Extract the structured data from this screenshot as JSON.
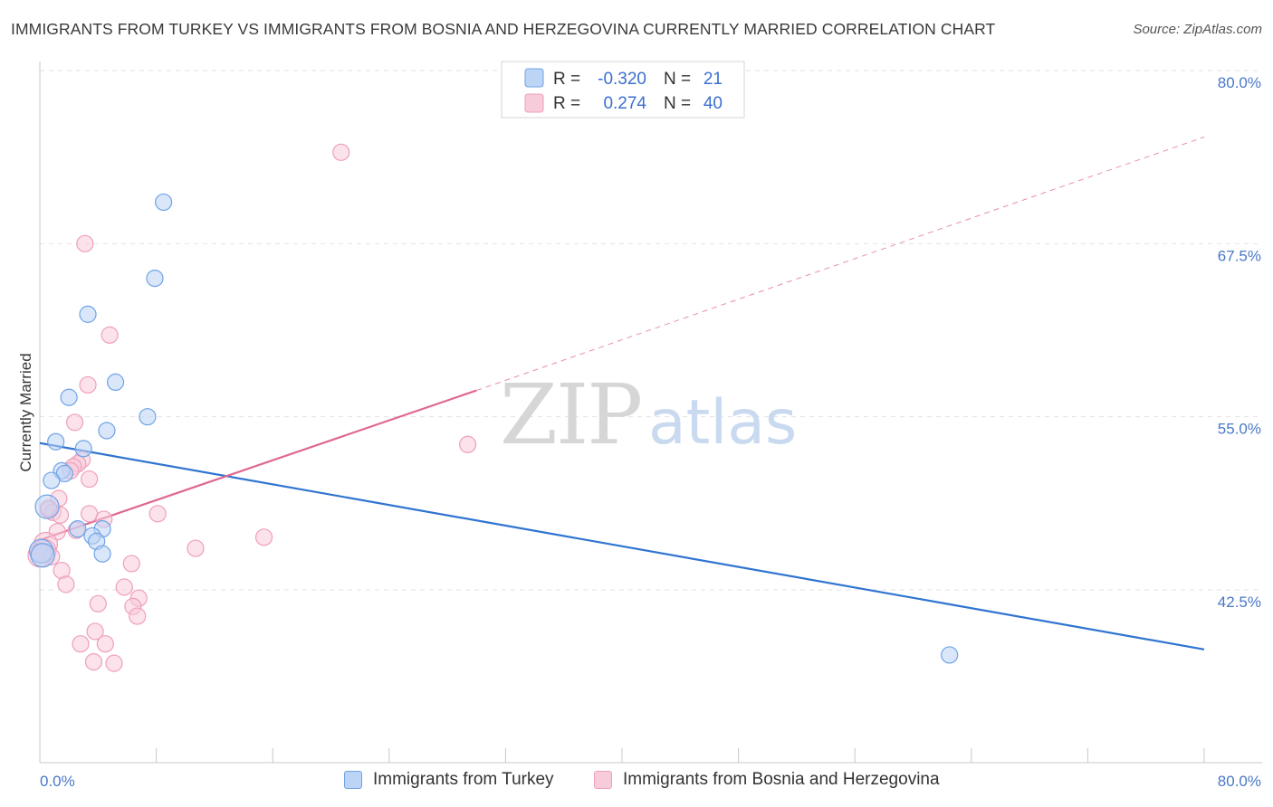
{
  "chart_data": {
    "type": "scatter",
    "title": "IMMIGRANTS FROM TURKEY VS IMMIGRANTS FROM BOSNIA AND HERZEGOVINA CURRENTLY MARRIED CORRELATION CHART",
    "source": "Source: ZipAtlas.com",
    "ylabel": "Currently Married",
    "xlabel": "",
    "xlim": [
      0,
      80
    ],
    "ylim": [
      32,
      81.5
    ],
    "x_tick_labels": [
      "0.0%",
      "80.0%"
    ],
    "y_ticks": [
      {
        "value": 80.0,
        "label": "80.0%"
      },
      {
        "value": 67.5,
        "label": "67.5%"
      },
      {
        "value": 55.0,
        "label": "55.0%"
      },
      {
        "value": 42.5,
        "label": "42.5%"
      }
    ],
    "watermark": {
      "zip": "ZIP",
      "atlas": "atlas"
    },
    "legend": {
      "rows": [
        {
          "r_label": "R =",
          "r_value": "-0.320",
          "n_label": "N =",
          "n_value": "21"
        },
        {
          "r_label": "R =",
          "r_value": "0.274",
          "n_label": "N =",
          "n_value": "40"
        }
      ]
    },
    "series": [
      {
        "name": "Immigrants from Turkey",
        "color": "#6fa3e6",
        "fill": "#bcd4f5",
        "line_color": "#2f74d0",
        "trend": {
          "x0": 0,
          "y0": 53.1,
          "x1": 80,
          "y1": 38.2,
          "dashed_to": null
        },
        "points": [
          {
            "x": 8.5,
            "y": 70.5
          },
          {
            "x": 7.9,
            "y": 65.0
          },
          {
            "x": 3.3,
            "y": 62.4
          },
          {
            "x": 5.2,
            "y": 57.5
          },
          {
            "x": 2.0,
            "y": 56.4
          },
          {
            "x": 7.4,
            "y": 55.0
          },
          {
            "x": 4.6,
            "y": 54.0
          },
          {
            "x": 1.1,
            "y": 53.2
          },
          {
            "x": 3.0,
            "y": 52.7
          },
          {
            "x": 1.5,
            "y": 51.1
          },
          {
            "x": 1.7,
            "y": 50.9
          },
          {
            "x": 0.8,
            "y": 50.4
          },
          {
            "x": 0.5,
            "y": 48.5
          },
          {
            "x": 4.3,
            "y": 46.9
          },
          {
            "x": 2.6,
            "y": 46.9
          },
          {
            "x": 3.6,
            "y": 46.4
          },
          {
            "x": 3.9,
            "y": 46.0
          },
          {
            "x": 4.3,
            "y": 45.1
          },
          {
            "x": 0.1,
            "y": 45.3
          },
          {
            "x": 0.2,
            "y": 45.0
          },
          {
            "x": 62.5,
            "y": 37.8
          }
        ]
      },
      {
        "name": "Immigrants from Bosnia and Herzegovina",
        "color": "#ef9fbb",
        "fill": "#f8cbdb",
        "line_color": "#e0688f",
        "trend": {
          "x0": 0,
          "y0": 46.1,
          "x1": 30.0,
          "y1": 56.9,
          "dashed_to": {
            "x": 80,
            "y": 75.2
          }
        },
        "points": [
          {
            "x": 20.7,
            "y": 74.1
          },
          {
            "x": 3.1,
            "y": 67.5
          },
          {
            "x": 4.8,
            "y": 60.9
          },
          {
            "x": 3.3,
            "y": 57.3
          },
          {
            "x": 2.4,
            "y": 54.6
          },
          {
            "x": 29.4,
            "y": 53.0
          },
          {
            "x": 2.9,
            "y": 51.9
          },
          {
            "x": 2.6,
            "y": 51.6
          },
          {
            "x": 2.3,
            "y": 51.4
          },
          {
            "x": 2.1,
            "y": 51.1
          },
          {
            "x": 3.4,
            "y": 50.5
          },
          {
            "x": 1.3,
            "y": 49.1
          },
          {
            "x": 0.6,
            "y": 48.3
          },
          {
            "x": 0.9,
            "y": 48.1
          },
          {
            "x": 1.4,
            "y": 47.9
          },
          {
            "x": 8.1,
            "y": 48.0
          },
          {
            "x": 3.4,
            "y": 48.0
          },
          {
            "x": 4.4,
            "y": 47.6
          },
          {
            "x": 2.5,
            "y": 46.8
          },
          {
            "x": 1.2,
            "y": 46.7
          },
          {
            "x": 15.4,
            "y": 46.3
          },
          {
            "x": 10.7,
            "y": 45.5
          },
          {
            "x": 0.4,
            "y": 45.8
          },
          {
            "x": 0.3,
            "y": 45.3
          },
          {
            "x": 0.8,
            "y": 44.9
          },
          {
            "x": 6.3,
            "y": 44.4
          },
          {
            "x": 1.5,
            "y": 43.9
          },
          {
            "x": 1.8,
            "y": 42.9
          },
          {
            "x": 5.8,
            "y": 42.7
          },
          {
            "x": 6.8,
            "y": 41.9
          },
          {
            "x": 4.0,
            "y": 41.5
          },
          {
            "x": 6.4,
            "y": 41.3
          },
          {
            "x": 6.7,
            "y": 40.6
          },
          {
            "x": 3.8,
            "y": 39.5
          },
          {
            "x": 2.8,
            "y": 38.6
          },
          {
            "x": 4.5,
            "y": 38.6
          },
          {
            "x": 3.7,
            "y": 37.3
          },
          {
            "x": 5.1,
            "y": 37.2
          },
          {
            "x": 0.0,
            "y": 45.0
          },
          {
            "x": 0.6,
            "y": 48.4
          }
        ]
      }
    ]
  }
}
